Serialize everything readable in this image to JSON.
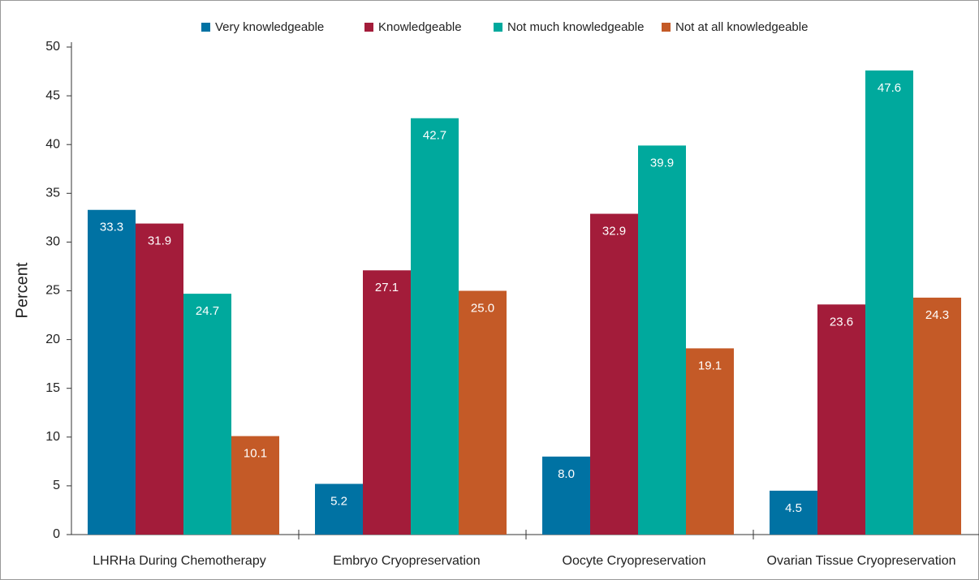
{
  "chart_data": {
    "type": "bar",
    "y_label": "Percent",
    "categories": [
      "LHRHa During Chemotherapy",
      "Embryo Cryopreservation",
      "Oocyte Cryopreservation",
      "Ovarian Tissue Cryopreservation"
    ],
    "series": [
      {
        "name": "Very knowledgeable",
        "color": "#0072a3",
        "values": [
          33.3,
          5.2,
          8.0,
          4.5
        ],
        "value_labels": [
          "33.3",
          "5.2",
          "8.0",
          "4.5"
        ]
      },
      {
        "name": "Knowledgeable",
        "color": "#a31c3a",
        "values": [
          31.9,
          27.1,
          32.9,
          23.6
        ],
        "value_labels": [
          "31.9",
          "27.1",
          "32.9",
          "23.6"
        ]
      },
      {
        "name": "Not much knowledgeable",
        "color": "#00a99d",
        "values": [
          24.7,
          42.7,
          39.9,
          47.6
        ],
        "value_labels": [
          "24.7",
          "42.7",
          "39.9",
          "47.6"
        ]
      },
      {
        "name": "Not at all knowledgeable",
        "color": "#c45a27",
        "values": [
          10.1,
          25.0,
          19.1,
          24.3
        ],
        "value_labels": [
          "10.1",
          "25.0",
          "19.1",
          "24.3"
        ]
      }
    ],
    "ylim": [
      0,
      50
    ],
    "yticks": [
      0,
      5,
      10,
      15,
      20,
      25,
      30,
      35,
      40,
      45,
      50
    ],
    "legend": "top"
  }
}
